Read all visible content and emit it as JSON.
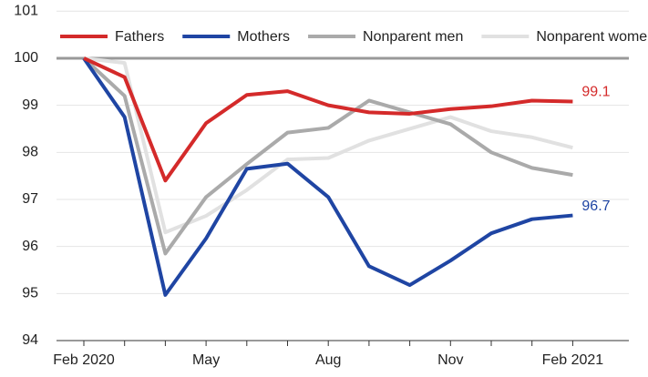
{
  "chart_data": {
    "type": "line",
    "categories": [
      "Feb 2020",
      null,
      null,
      "May",
      null,
      null,
      "Aug",
      null,
      null,
      "Nov",
      null,
      null,
      "Feb 2021"
    ],
    "series": [
      {
        "name": "Fathers",
        "color": "#d42a2a",
        "values": [
          100,
          99.6,
          97.4,
          98.62,
          99.22,
          99.3,
          99.0,
          98.85,
          98.82,
          98.92,
          98.98,
          99.1,
          99.08
        ],
        "value_labels": [
          null,
          null,
          null,
          null,
          null,
          null,
          null,
          null,
          null,
          null,
          null,
          null,
          "99.1"
        ]
      },
      {
        "name": "Mothers",
        "color": "#1f45a3",
        "values": [
          100,
          98.75,
          94.97,
          96.17,
          97.65,
          97.76,
          97.05,
          95.58,
          95.18,
          95.7,
          96.28,
          96.58,
          96.66
        ],
        "value_labels": [
          null,
          null,
          null,
          null,
          null,
          null,
          null,
          null,
          null,
          null,
          null,
          null,
          "96.7"
        ]
      },
      {
        "name": "Nonparent men",
        "color": "#aaaaaa",
        "values": [
          100,
          99.2,
          95.85,
          97.05,
          97.75,
          98.42,
          98.52,
          99.1,
          98.85,
          98.6,
          98.0,
          97.67,
          97.52
        ]
      },
      {
        "name": "Nonparent women",
        "color": "#e1e1e1",
        "values": [
          100,
          99.9,
          96.3,
          96.65,
          97.2,
          97.85,
          97.88,
          98.25,
          98.5,
          98.75,
          98.45,
          98.32,
          98.1
        ]
      }
    ],
    "ylim": [
      94,
      101
    ],
    "yticks": [
      94,
      95,
      96,
      97,
      98,
      99,
      100,
      101
    ],
    "reference_line": 100,
    "grid": true,
    "legend": "top-left"
  }
}
